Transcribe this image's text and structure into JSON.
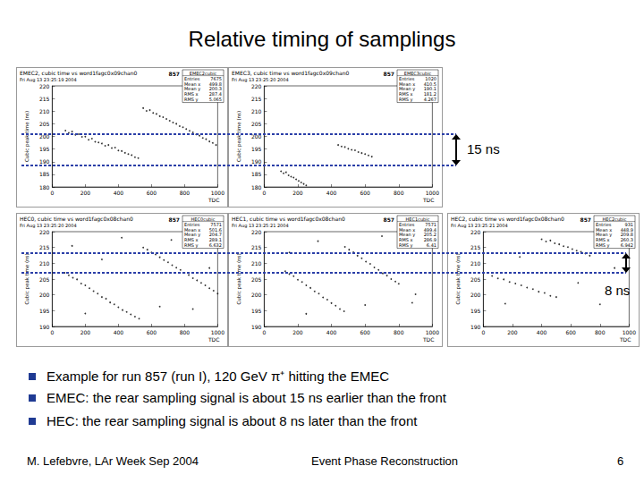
{
  "title": "Relative timing of samplings",
  "annotations": [
    "15 ns",
    "8 ns"
  ],
  "bullets": [
    "Example for run 857 (run I), 120 GeV π⁺ hitting the EMEC",
    "EMEC: the rear sampling signal is about 15 ns earlier than the front",
    "HEC: the rear sampling signal is about 8 ns later than the front"
  ],
  "footer": {
    "left": "M. Lefebvre, LAr Week Sep 2004",
    "center": "Event Phase Reconstruction",
    "right": 6
  },
  "chart_data": [
    {
      "type": "scatter",
      "title": "EMEC2, cubic time vs word1fagc0x09chan0",
      "subtitle": "Fri Aug 13 23:25:19 2004",
      "annotations": [
        "857"
      ],
      "x_label": "TDC",
      "y_label": "Cubic peak time (ns)",
      "color": "#000000",
      "grid": false,
      "xlim": [
        0,
        1000
      ],
      "xticks": [
        0,
        200,
        400,
        600,
        800,
        1000
      ],
      "ylim": [
        180,
        220
      ],
      "yticks": [
        180,
        185,
        190,
        195,
        200,
        205,
        210,
        215,
        220
      ],
      "stats": {
        "title": "EMEC2cubic",
        "rows": [
          {
            "label": "Entries",
            "value": 7675
          },
          {
            "label": "Mean x",
            "value": 499.8
          },
          {
            "label": "Mean y",
            "value": 200.3
          },
          {
            "label": "RMS x",
            "value": 287.4
          },
          {
            "label": "RMS y",
            "value": 5.065
          }
        ]
      },
      "x": [
        80,
        100,
        120,
        140,
        160,
        180,
        200,
        220,
        240,
        260,
        280,
        300,
        320,
        340,
        360,
        380,
        400,
        420,
        440,
        460,
        480,
        500,
        520,
        550,
        570,
        590,
        610,
        630,
        650,
        670,
        690,
        710,
        730,
        750,
        770,
        790,
        810,
        830,
        850,
        870,
        890,
        910,
        930,
        950,
        970,
        990
      ],
      "values": [
        202.3,
        201.4,
        201.9,
        200.6,
        200.9,
        199.8,
        199.9,
        198.7,
        199.1,
        197.9,
        197.6,
        197.2,
        196.3,
        196.6,
        195.4,
        195.6,
        194.4,
        194.2,
        193.5,
        193.0,
        192.6,
        191.8,
        191.4,
        211.2,
        210.1,
        210.4,
        209.3,
        208.9,
        208.0,
        207.6,
        206.9,
        206.2,
        205.5,
        205.0,
        204.1,
        203.6,
        202.9,
        202.2,
        201.6,
        200.8,
        200.3,
        199.4,
        198.9,
        198.0,
        197.4,
        196.6
      ]
    },
    {
      "type": "scatter",
      "title": "EMEC3, cubic time vs word1fagc0x09chan0",
      "subtitle": "Fri Aug 13 23:25:20 2004",
      "annotations": [
        "857"
      ],
      "x_label": "TDC",
      "y_label": "Cubic peak time (ns)",
      "color": "#000000",
      "grid": false,
      "xlim": [
        0,
        1000
      ],
      "xticks": [
        0,
        200,
        400,
        600,
        800,
        1000
      ],
      "ylim": [
        180,
        220
      ],
      "yticks": [
        180,
        185,
        190,
        195,
        200,
        205,
        210,
        215,
        220
      ],
      "stats": {
        "title": "EMEC3cubic",
        "rows": [
          {
            "label": "Entries",
            "value": 1020
          },
          {
            "label": "Mean x",
            "value": 410.5
          },
          {
            "label": "Mean y",
            "value": 190.1
          },
          {
            "label": "RMS x",
            "value": 181.2
          },
          {
            "label": "RMS y",
            "value": 4.267
          }
        ]
      },
      "x": [
        100,
        115,
        130,
        145,
        160,
        175,
        190,
        205,
        220,
        235,
        250,
        440,
        460,
        480,
        500,
        520,
        540,
        560,
        580,
        600,
        620,
        640
      ],
      "values": [
        186.2,
        185.4,
        185.8,
        184.6,
        184.1,
        183.7,
        183.0,
        182.4,
        181.8,
        181.2,
        180.6,
        196.6,
        196.0,
        195.8,
        195.1,
        194.7,
        194.5,
        193.8,
        193.4,
        193.0,
        192.5,
        192.0
      ]
    },
    {
      "type": "scatter",
      "title": "HEC0, cubic time vs word1fagc0x08chan0",
      "subtitle": "Fri Aug 13 23:25:20 2004",
      "annotations": [
        "857"
      ],
      "x_label": "TDC",
      "y_label": "Cubic peak time (ns)",
      "color": "#000000",
      "grid": false,
      "xlim": [
        0,
        1000
      ],
      "xticks": [
        0,
        200,
        400,
        600,
        800,
        1000
      ],
      "ylim": [
        190,
        220
      ],
      "yticks": [
        190,
        195,
        200,
        205,
        210,
        215,
        220
      ],
      "stats": {
        "title": "HEC0cubic",
        "rows": [
          {
            "label": "Entries",
            "value": 7571
          },
          {
            "label": "Mean x",
            "value": 501.6
          },
          {
            "label": "Mean y",
            "value": 204.7
          },
          {
            "label": "RMS x",
            "value": 289.1
          },
          {
            "label": "RMS y",
            "value": 6.632
          }
        ]
      },
      "x": [
        75,
        100,
        125,
        150,
        175,
        200,
        225,
        250,
        275,
        300,
        325,
        350,
        375,
        400,
        425,
        450,
        475,
        500,
        525,
        550,
        575,
        600,
        625,
        650,
        675,
        700,
        725,
        750,
        775,
        800,
        825,
        850,
        875,
        900,
        925,
        950,
        975,
        1000,
        120,
        300,
        420,
        650,
        200,
        720,
        950,
        850
      ],
      "values": [
        207.0,
        206.2,
        205.4,
        204.9,
        203.6,
        203.0,
        202.1,
        201.2,
        200.4,
        199.3,
        198.8,
        197.6,
        197.0,
        196.1,
        195.2,
        194.6,
        193.8,
        193.1,
        192.5,
        215.0,
        214.3,
        213.4,
        212.8,
        211.9,
        211.0,
        210.3,
        209.4,
        208.6,
        207.9,
        207.0,
        206.3,
        205.3,
        204.6,
        203.8,
        203.0,
        202.1,
        201.3,
        200.4,
        215.5,
        211.2,
        218.1,
        196.3,
        194.1,
        217.4,
        208.5,
        195.5
      ]
    },
    {
      "type": "scatter",
      "title": "HEC1, cubic time vs word1fagc0x08chan0",
      "subtitle": "Fri Aug 13 23:25:21 2004",
      "annotations": [
        "857"
      ],
      "x_label": "TDC",
      "y_label": "Cubic peak time (ns)",
      "color": "#000000",
      "grid": false,
      "xlim": [
        0,
        1000
      ],
      "xticks": [
        0,
        200,
        400,
        600,
        800,
        1000
      ],
      "ylim": [
        190,
        220
      ],
      "yticks": [
        190,
        195,
        200,
        205,
        210,
        215,
        220
      ],
      "stats": {
        "title": "HEC1cubic",
        "rows": [
          {
            "label": "Entries",
            "value": 7571
          },
          {
            "label": "Mean x",
            "value": 499.4
          },
          {
            "label": "Mean y",
            "value": 205.2
          },
          {
            "label": "RMS x",
            "value": 286.9
          },
          {
            "label": "RMS y",
            "value": 6.41
          }
        ]
      },
      "x": [
        125,
        150,
        175,
        200,
        225,
        250,
        275,
        300,
        325,
        350,
        375,
        400,
        425,
        450,
        475,
        480,
        505,
        530,
        555,
        580,
        605,
        630,
        655,
        680,
        705,
        730,
        755,
        780,
        800,
        150,
        320,
        600,
        880,
        250,
        700,
        900
      ],
      "values": [
        207.5,
        206.6,
        205.9,
        204.8,
        204.1,
        203.0,
        202.2,
        201.1,
        200.4,
        199.2,
        198.5,
        197.4,
        196.6,
        195.5,
        194.8,
        215.2,
        214.3,
        213.5,
        212.4,
        211.6,
        210.5,
        209.8,
        208.7,
        207.9,
        206.8,
        206.1,
        205.0,
        204.2,
        203.5,
        213.4,
        217.0,
        196.8,
        197.5,
        194.0,
        218.6,
        200.2
      ]
    },
    {
      "type": "scatter",
      "title": "HEC2, cubic time vs word1fagc0x08chan0",
      "subtitle": "Fri Aug 13 23:25:21 2004",
      "annotations": [
        "857"
      ],
      "x_label": "TDC",
      "y_label": "Cubic peak time (ns)",
      "color": "#000000",
      "grid": false,
      "xlim": [
        0,
        1000
      ],
      "xticks": [
        0,
        200,
        400,
        600,
        800,
        1000
      ],
      "ylim": [
        190,
        220
      ],
      "yticks": [
        190,
        195,
        200,
        205,
        210,
        215,
        220
      ],
      "stats": {
        "title": "HEC2cubic",
        "rows": [
          {
            "label": "Entries",
            "value": 931
          },
          {
            "label": "Mean x",
            "value": 448.9
          },
          {
            "label": "Mean y",
            "value": 209.8
          },
          {
            "label": "RMS x",
            "value": 260.3
          },
          {
            "label": "RMS y",
            "value": 6.942
          }
        ]
      },
      "x": [
        400,
        430,
        460,
        490,
        520,
        550,
        580,
        610,
        640,
        670,
        700,
        730,
        60,
        100,
        140,
        180,
        220,
        260,
        300,
        340,
        380,
        420,
        460,
        500,
        250,
        800,
        650,
        900,
        150
      ],
      "values": [
        217.6,
        216.9,
        217.2,
        216.3,
        216.0,
        215.4,
        215.1,
        214.5,
        214.0,
        213.6,
        213.1,
        212.4,
        206.0,
        205.2,
        204.9,
        204.1,
        203.6,
        203.0,
        202.3,
        201.8,
        201.0,
        200.6,
        199.7,
        199.3,
        212.0,
        197.0,
        203.8,
        208.5,
        197.2
      ]
    }
  ]
}
